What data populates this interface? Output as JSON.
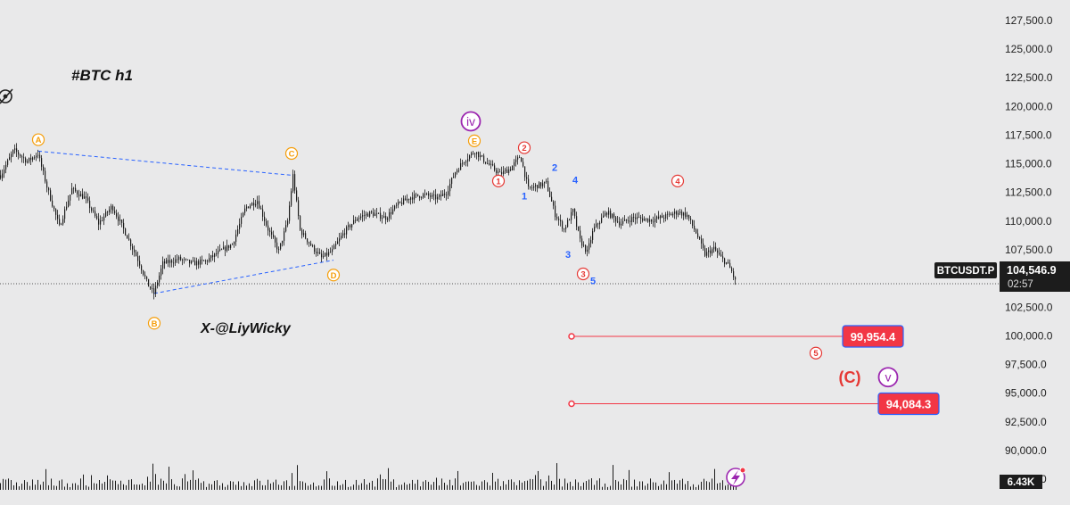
{
  "chart_data": {
    "type": "candlestick",
    "title": "#BTC h1",
    "watermark": "X-@LiyWicky",
    "symbol": "BTCUSDT.P",
    "last_price": "104,546.9",
    "countdown": "02:57",
    "volume_label": "6.43K",
    "y_ticks": [
      "127,500.0",
      "125,000.0",
      "122,500.0",
      "120,000.0",
      "117,500.0",
      "115,000.0",
      "112,500.0",
      "110,000.0",
      "107,500.0",
      "105,000.0",
      "102,500.0",
      "100,000.0",
      "97,500.0",
      "95,000.0",
      "92,500.0",
      "90,000.0",
      "87,500.0"
    ],
    "ylim": [
      86500,
      128500
    ],
    "price_path": [
      [
        0,
        114000
      ],
      [
        15,
        116200
      ],
      [
        30,
        115200
      ],
      [
        42,
        115900
      ],
      [
        52,
        113000
      ],
      [
        66,
        109500
      ],
      [
        80,
        112800
      ],
      [
        95,
        112000
      ],
      [
        110,
        109800
      ],
      [
        125,
        111300
      ],
      [
        140,
        109000
      ],
      [
        155,
        106500
      ],
      [
        165,
        104500
      ],
      [
        172,
        103700
      ],
      [
        182,
        106300
      ],
      [
        200,
        106700
      ],
      [
        215,
        106300
      ],
      [
        230,
        106500
      ],
      [
        245,
        107300
      ],
      [
        260,
        108000
      ],
      [
        275,
        111200
      ],
      [
        288,
        111800
      ],
      [
        300,
        109300
      ],
      [
        312,
        107400
      ],
      [
        322,
        110000
      ],
      [
        328,
        114000
      ],
      [
        336,
        109200
      ],
      [
        350,
        107700
      ],
      [
        360,
        106800
      ],
      [
        372,
        107400
      ],
      [
        385,
        109000
      ],
      [
        400,
        110300
      ],
      [
        415,
        110700
      ],
      [
        432,
        110300
      ],
      [
        445,
        111400
      ],
      [
        460,
        112100
      ],
      [
        475,
        112300
      ],
      [
        490,
        112000
      ],
      [
        500,
        112500
      ],
      [
        510,
        114300
      ],
      [
        520,
        115300
      ],
      [
        532,
        116100
      ],
      [
        545,
        115100
      ],
      [
        560,
        114100
      ],
      [
        572,
        114600
      ],
      [
        583,
        115700
      ],
      [
        592,
        112800
      ],
      [
        602,
        113100
      ],
      [
        612,
        113300
      ],
      [
        622,
        110600
      ],
      [
        632,
        109300
      ],
      [
        642,
        110900
      ],
      [
        650,
        108300
      ],
      [
        658,
        107300
      ],
      [
        665,
        109300
      ],
      [
        680,
        110800
      ],
      [
        695,
        109800
      ],
      [
        710,
        110300
      ],
      [
        730,
        110100
      ],
      [
        745,
        110400
      ],
      [
        760,
        110800
      ],
      [
        770,
        110500
      ],
      [
        780,
        109000
      ],
      [
        790,
        107100
      ],
      [
        800,
        107600
      ],
      [
        808,
        106800
      ],
      [
        815,
        106300
      ],
      [
        820,
        105600
      ],
      [
        825,
        104546
      ]
    ],
    "wave_labels": [
      {
        "text": "A",
        "x": 43,
        "price": 117100,
        "color": "#f59e0b",
        "kind": "circle"
      },
      {
        "text": "B",
        "x": 173,
        "price": 101100,
        "color": "#f59e0b",
        "kind": "circle"
      },
      {
        "text": "C",
        "x": 327,
        "price": 115900,
        "color": "#f59e0b",
        "kind": "circle"
      },
      {
        "text": "D",
        "x": 374,
        "price": 105300,
        "color": "#f59e0b",
        "kind": "circle"
      },
      {
        "text": "E",
        "x": 532,
        "price": 117000,
        "color": "#f59e0b",
        "kind": "circle"
      },
      {
        "text": "iv",
        "x": 528,
        "price": 118700,
        "color": "#9c27b0",
        "kind": "circle-big"
      },
      {
        "text": "1",
        "x": 559,
        "price": 113500,
        "color": "#e53935",
        "kind": "circle"
      },
      {
        "text": "2",
        "x": 588,
        "price": 116400,
        "color": "#e53935",
        "kind": "circle"
      },
      {
        "text": "3",
        "x": 654,
        "price": 105400,
        "color": "#e53935",
        "kind": "circle"
      },
      {
        "text": "4",
        "x": 760,
        "price": 113500,
        "color": "#e53935",
        "kind": "circle"
      },
      {
        "text": "5",
        "x": 915,
        "price": 98500,
        "color": "#e53935",
        "kind": "circle"
      },
      {
        "text": "v",
        "x": 996,
        "price": 96400,
        "color": "#9c27b0",
        "kind": "circle-big"
      },
      {
        "text": "(C)",
        "x": 953,
        "price": 96400,
        "color": "#e53935",
        "kind": "plain-big"
      },
      {
        "text": "1",
        "x": 588,
        "price": 112200,
        "color": "#2962ff",
        "kind": "plain"
      },
      {
        "text": "2",
        "x": 622,
        "price": 114700,
        "color": "#2962ff",
        "kind": "plain"
      },
      {
        "text": "3",
        "x": 637,
        "price": 107100,
        "color": "#2962ff",
        "kind": "plain"
      },
      {
        "text": "4",
        "x": 645,
        "price": 113600,
        "color": "#2962ff",
        "kind": "plain"
      },
      {
        "text": "5",
        "x": 665,
        "price": 104800,
        "color": "#2962ff",
        "kind": "plain"
      }
    ],
    "trendlines": [
      {
        "x1": 43,
        "p1": 116100,
        "x2": 327,
        "p2": 114000
      },
      {
        "x1": 173,
        "p1": 103700,
        "x2": 374,
        "p2": 106600
      }
    ],
    "targets": [
      {
        "label": "99,954.4",
        "price": 99954.4,
        "x_start": 641,
        "x_end": 945
      },
      {
        "label": "94,084.3",
        "price": 94084.3,
        "x_start": 641,
        "x_end": 985
      }
    ],
    "colors": {
      "background": "#e9e9ea",
      "candle": "#1c1c1c",
      "trendline": "#2962ff",
      "target": "#f23645",
      "target_border": "#2962ff",
      "price_tag": "#1c1c1c",
      "volume": "#1c1c1c"
    }
  }
}
